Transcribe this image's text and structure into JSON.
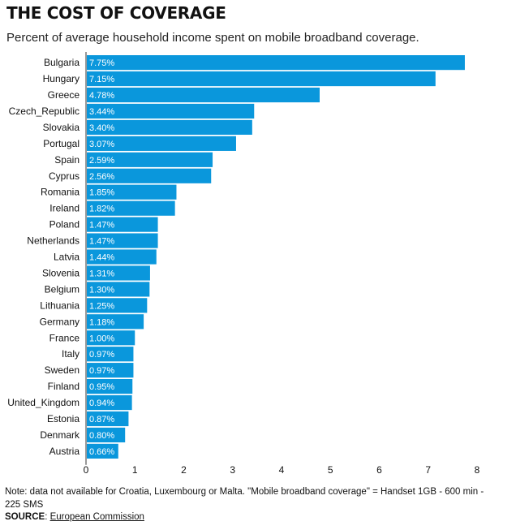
{
  "title": "THE COST OF COVERAGE",
  "subtitle": "Percent of average household income spent on mobile broadband coverage.",
  "note": "Note: data not available for Croatia, Luxembourg or Malta. \"Mobile broadband coverage\" = Handset 1GB - 600 min - 225 SMS",
  "source_label": "SOURCE",
  "source_link": "European Commission",
  "chart_data": {
    "type": "bar",
    "orientation": "horizontal",
    "categories": [
      "Bulgaria",
      "Hungary",
      "Greece",
      "Czech_Republic",
      "Slovakia",
      "Portugal",
      "Spain",
      "Cyprus",
      "Romania",
      "Ireland",
      "Poland",
      "Netherlands",
      "Latvia",
      "Slovenia",
      "Belgium",
      "Lithuania",
      "Germany",
      "France",
      "Italy",
      "Sweden",
      "Finland",
      "United_Kingdom",
      "Estonia",
      "Denmark",
      "Austria"
    ],
    "values": [
      7.75,
      7.15,
      4.78,
      3.44,
      3.4,
      3.07,
      2.59,
      2.56,
      1.85,
      1.82,
      1.47,
      1.47,
      1.44,
      1.31,
      1.3,
      1.25,
      1.18,
      1.0,
      0.97,
      0.97,
      0.95,
      0.94,
      0.87,
      0.8,
      0.66
    ],
    "value_labels": [
      "7.75%",
      "7.15%",
      "4.78%",
      "3.44%",
      "3.40%",
      "3.07%",
      "2.59%",
      "2.56%",
      "1.85%",
      "1.82%",
      "1.47%",
      "1.47%",
      "1.44%",
      "1.31%",
      "1.30%",
      "1.25%",
      "1.18%",
      "1.00%",
      "0.97%",
      "0.97%",
      "0.95%",
      "0.94%",
      "0.87%",
      "0.80%",
      "0.66%"
    ],
    "xlim": [
      0,
      8
    ],
    "xticks": [
      "0",
      "1",
      "2",
      "3",
      "4",
      "5",
      "6",
      "7",
      "8"
    ],
    "grid": false,
    "bar_color": "#0a97dc"
  }
}
